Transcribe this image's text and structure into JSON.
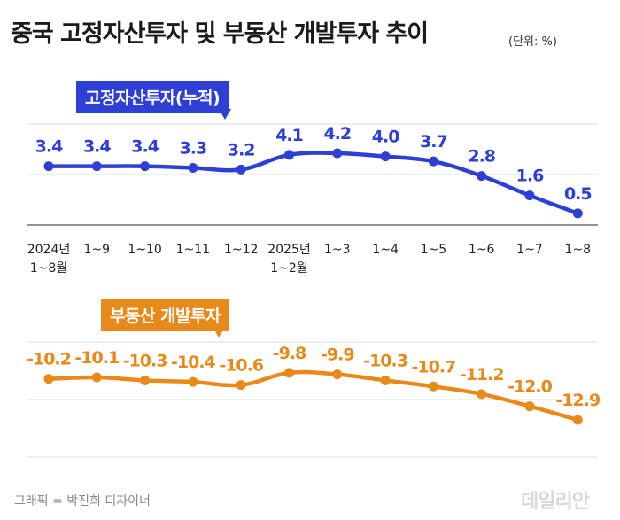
{
  "header": {
    "title": "중국 고정자산투자 및 부동산 개발투자 추이",
    "unit": "(단위: %)"
  },
  "footer": {
    "credit": "그래픽 = 박진희 디자이너",
    "logo": "데일리안"
  },
  "colors": {
    "fixed_asset": "#2e3fd6",
    "real_estate": "#e88a1a",
    "grid": "#e3e3e3"
  },
  "chart_data": [
    {
      "type": "line",
      "title": "",
      "series": [
        {
          "name": "고정자산투자(누적)",
          "values": [
            3.4,
            3.4,
            3.4,
            3.3,
            3.2,
            4.1,
            4.2,
            4.0,
            3.7,
            2.8,
            1.6,
            0.5
          ]
        }
      ],
      "x_tick_labels": [
        [
          "2024년",
          "1~8월"
        ],
        [
          "1~9"
        ],
        [
          "1~10"
        ],
        [
          "1~11"
        ],
        [
          "1~12"
        ],
        [
          "2025년",
          "1~2월"
        ],
        [
          "1~3"
        ],
        [
          "1~4"
        ],
        [
          "1~5"
        ],
        [
          "1~6"
        ],
        [
          "1~7"
        ],
        [
          "1~8"
        ]
      ],
      "value_labels": [
        "3.4",
        "3.4",
        "3.4",
        "3.3",
        "3.2",
        "4.1",
        "4.2",
        "4.0",
        "3.7",
        "2.8",
        "1.6",
        "0.5"
      ],
      "ylim": [
        0,
        6
      ],
      "grid": true,
      "legend": "badge top-left"
    },
    {
      "type": "line",
      "title": "",
      "series": [
        {
          "name": "부동산 개발투자",
          "values": [
            -10.2,
            -10.1,
            -10.3,
            -10.4,
            -10.6,
            -9.8,
            -9.9,
            -10.3,
            -10.7,
            -11.2,
            -12.0,
            -12.9
          ]
        }
      ],
      "value_labels": [
        "-10.2",
        "-10.1",
        "-10.3",
        "-10.4",
        "-10.6",
        "-9.8",
        "-9.9",
        "-10.3",
        "-10.7",
        "-11.2",
        "-12.0",
        "-12.9"
      ],
      "ylim": [
        -15,
        -8
      ],
      "grid": true,
      "legend": "badge top-left"
    }
  ]
}
